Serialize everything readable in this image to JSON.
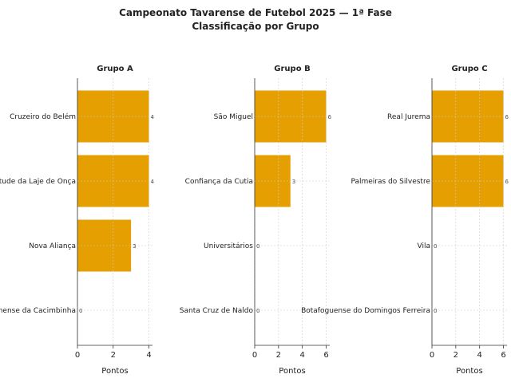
{
  "chart_data": {
    "type": "bar",
    "orientation": "horizontal",
    "title": "Campeonato Tavarense de Futebol 2025 — 1ª Fase",
    "subtitle": "Classificação por Grupo",
    "bar_color": "#E69F00",
    "grid": true,
    "panels": [
      {
        "title": "Grupo A",
        "xlabel": "Pontos",
        "xlim": [
          0,
          4.2
        ],
        "xticks": [
          "0",
          "2",
          "4"
        ],
        "xtick_values": [
          0,
          2,
          4
        ],
        "categories": [
          "Cruzeiro do Belém",
          "Juventude da Laje de Onça",
          "Nova Aliança",
          "Fluminense da Cacimbinha"
        ],
        "values": [
          4,
          4,
          3,
          0
        ],
        "value_labels": [
          "4",
          "4",
          "3",
          "0"
        ]
      },
      {
        "title": "Grupo B",
        "xlabel": "Pontos",
        "xlim": [
          0,
          6.3
        ],
        "xticks": [
          "0",
          "2",
          "4",
          "6"
        ],
        "xtick_values": [
          0,
          2,
          4,
          6
        ],
        "categories": [
          "São Miguel",
          "Confiança da Cutia",
          "Universitários",
          "Santa Cruz de Naldo"
        ],
        "values": [
          6,
          3,
          0,
          0
        ],
        "value_labels": [
          "6",
          "3",
          "0",
          "0"
        ]
      },
      {
        "title": "Grupo C",
        "xlabel": "Pontos",
        "xlim": [
          0,
          6.3
        ],
        "xticks": [
          "0",
          "2",
          "4",
          "6"
        ],
        "xtick_values": [
          0,
          2,
          4,
          6
        ],
        "categories": [
          "Real Jurema",
          "Palmeiras do Silvestre",
          "Vila",
          "Botafoguense do Domingos Ferreira"
        ],
        "values": [
          6,
          6,
          0,
          0
        ],
        "value_labels": [
          "6",
          "6",
          "0",
          "0"
        ]
      }
    ]
  }
}
